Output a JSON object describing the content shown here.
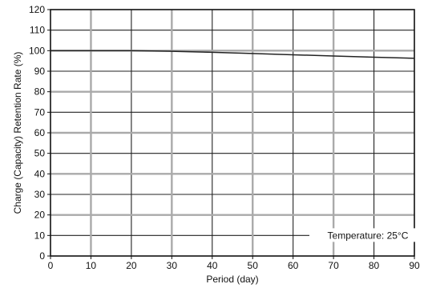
{
  "chart_data": {
    "type": "line",
    "xlabel": "Period (day)",
    "ylabel": "Charge (Capacity) Retention Rate (%)",
    "xlim": [
      0,
      90
    ],
    "ylim": [
      0,
      120
    ],
    "x_ticks": [
      "0",
      "10",
      "20",
      "30",
      "40",
      "50",
      "60",
      "70",
      "80",
      "90"
    ],
    "y_ticks": [
      "0",
      "10",
      "20",
      "30",
      "40",
      "50",
      "60",
      "70",
      "80",
      "90",
      "100",
      "110",
      "120"
    ],
    "grid": true,
    "annotation": "Temperature: 25°C",
    "series": [
      {
        "x": [
          0,
          10,
          20,
          30,
          40,
          50,
          60,
          70,
          80,
          90
        ],
        "values": [
          100,
          100,
          100,
          99.7,
          99.2,
          98.6,
          98,
          97.4,
          96.8,
          96.3
        ],
        "color": "#222222"
      }
    ]
  }
}
